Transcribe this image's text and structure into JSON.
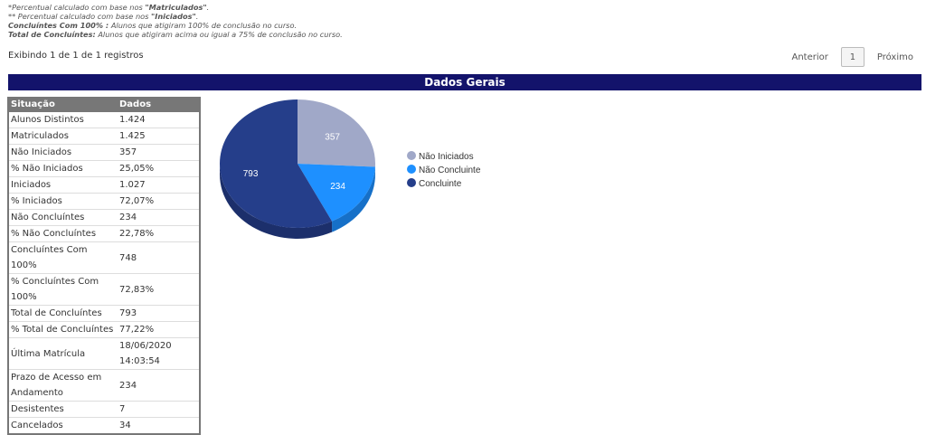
{
  "notes": [
    {
      "prefix": "*Percentual calculado com base nos ",
      "bold": "\"Matriculados\"",
      "suffix": "."
    },
    {
      "prefix": "** Percentual calculado com base nos ",
      "bold": "\"Iniciados\"",
      "suffix": "."
    },
    {
      "prefix": "",
      "bold": "Concluíntes Com 100% :",
      "suffix": " Alunos que atigiram 100% de conclusão no curso."
    },
    {
      "prefix": "",
      "bold": "Total de Concluíntes:",
      "suffix": " Alunos que atigiram acima ou igual a 75% de conclusão no curso."
    }
  ],
  "showing": "Exibindo 1 de 1 de 1 registros",
  "pager": {
    "prev": "Anterior",
    "page": "1",
    "next": "Próximo"
  },
  "banner": "Dados Gerais",
  "table": {
    "headers": [
      "Situação",
      "Dados"
    ],
    "rows": [
      [
        "Alunos Distintos",
        "1.424"
      ],
      [
        "Matriculados",
        "1.425"
      ],
      [
        "Não Iniciados",
        "357"
      ],
      [
        "% Não Iniciados",
        "25,05%"
      ],
      [
        "Iniciados",
        "1.027"
      ],
      [
        "% Iniciados",
        "72,07%"
      ],
      [
        "Não Concluíntes",
        "234"
      ],
      [
        "% Não Concluíntes",
        "22,78%"
      ],
      [
        "Concluíntes Com 100%",
        "748"
      ],
      [
        "% Concluíntes Com 100%",
        "72,83%"
      ],
      [
        "Total de Concluíntes",
        "793"
      ],
      [
        "% Total de Concluíntes",
        "77,22%"
      ],
      [
        "Última Matrícula",
        "18/06/2020 14:03:54"
      ],
      [
        "Prazo de Acesso em Andamento",
        "234"
      ],
      [
        "Desistentes",
        "7"
      ],
      [
        "Cancelados",
        "34"
      ]
    ]
  },
  "chart_data": {
    "type": "pie",
    "categories": [
      "Não Iniciados",
      "Não Concluinte",
      "Concluinte"
    ],
    "values": [
      357,
      234,
      793
    ],
    "colors": [
      "#a0a8c8",
      "#1e90ff",
      "#253e8a"
    ],
    "side_colors": [
      "#7d84a3",
      "#1670c8",
      "#1c2f6b"
    ],
    "legend": "right"
  }
}
